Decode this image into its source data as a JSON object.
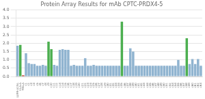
{
  "chart_data": {
    "type": "bar",
    "title": "Protein Array Results for mAb CPTC-PRDX4-5",
    "categories": [
      "LU99-A1NL",
      "HLA-A",
      "TIBLA",
      "c1",
      "c2",
      "c3",
      "c4",
      "c5",
      "c6",
      "c7",
      "c8",
      "c9",
      "c10",
      "c11",
      "c12",
      "c13",
      "c14",
      "c15",
      "c16",
      "c17",
      "c18",
      "c19",
      "c20",
      "c21",
      "c22",
      "c23",
      "c24",
      "c25",
      "c26",
      "c27",
      "c28",
      "c29",
      "c30",
      "c31",
      "c32",
      "c33",
      "c34",
      "c35",
      "c36",
      "c37",
      "c38",
      "c39",
      "c40",
      "c41",
      "c42",
      "c43",
      "c44",
      "c45",
      "c46",
      "c47",
      "c48",
      "c49",
      "c50",
      "c51",
      "c52",
      "c53",
      "c54",
      "c55",
      "c56",
      "c57",
      "c58",
      "c59",
      "c60",
      "c61",
      "c62",
      "c63"
    ],
    "values": [
      1.85,
      1.9,
      0.08,
      1.4,
      0.8,
      0.75,
      0.75,
      0.65,
      0.65,
      0.7,
      0.65,
      2.1,
      1.65,
      0.7,
      0.65,
      1.6,
      1.65,
      1.6,
      1.6,
      0.65,
      0.7,
      0.65,
      0.65,
      0.65,
      1.1,
      0.65,
      0.65,
      0.7,
      0.65,
      0.65,
      0.65,
      0.65,
      0.65,
      0.65,
      0.65,
      0.65,
      0.65,
      3.3,
      0.65,
      0.65,
      1.7,
      1.5,
      0.65,
      0.65,
      0.65,
      0.65,
      0.65,
      0.65,
      0.65,
      0.65,
      0.65,
      0.65,
      0.65,
      0.65,
      0.65,
      0.65,
      0.65,
      1.0,
      0.65,
      0.65,
      2.3,
      0.75,
      1.05,
      0.75,
      1.05,
      0.65
    ],
    "colors": [
      "#90b4d0",
      "#4caf50",
      "#c0392b",
      "#90b4d0",
      "#90b4d0",
      "#90b4d0",
      "#90b4d0",
      "#90b4d0",
      "#90b4d0",
      "#90b4d0",
      "#90b4d0",
      "#4caf50",
      "#4caf50",
      "#90b4d0",
      "#90b4d0",
      "#90b4d0",
      "#90b4d0",
      "#90b4d0",
      "#90b4d0",
      "#90b4d0",
      "#90b4d0",
      "#90b4d0",
      "#90b4d0",
      "#90b4d0",
      "#90b4d0",
      "#90b4d0",
      "#90b4d0",
      "#90b4d0",
      "#90b4d0",
      "#90b4d0",
      "#90b4d0",
      "#90b4d0",
      "#90b4d0",
      "#90b4d0",
      "#90b4d0",
      "#90b4d0",
      "#90b4d0",
      "#4caf50",
      "#90b4d0",
      "#90b4d0",
      "#90b4d0",
      "#90b4d0",
      "#90b4d0",
      "#90b4d0",
      "#90b4d0",
      "#90b4d0",
      "#90b4d0",
      "#90b4d0",
      "#90b4d0",
      "#90b4d0",
      "#90b4d0",
      "#90b4d0",
      "#90b4d0",
      "#90b4d0",
      "#90b4d0",
      "#90b4d0",
      "#90b4d0",
      "#90b4d0",
      "#90b4d0",
      "#90b4d0",
      "#4caf50",
      "#90b4d0",
      "#90b4d0",
      "#90b4d0",
      "#90b4d0",
      "#90b4d0"
    ],
    "ylim": [
      0.0,
      4.0
    ],
    "yticks": [
      {
        "value": 0,
        "label": "0.0"
      },
      0.5,
      {
        "value": 1,
        "label": "1.0"
      },
      1.5,
      {
        "value": 2,
        "label": "2.0"
      },
      2.5,
      {
        "value": 3,
        "label": "3.0"
      },
      3.5,
      {
        "value": 4,
        "label": "4.0"
      }
    ],
    "grid": true
  }
}
